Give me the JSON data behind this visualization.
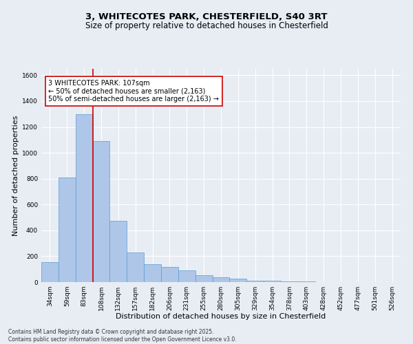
{
  "title_line1": "3, WHITECOTES PARK, CHESTERFIELD, S40 3RT",
  "title_line2": "Size of property relative to detached houses in Chesterfield",
  "xlabel": "Distribution of detached houses by size in Chesterfield",
  "ylabel": "Number of detached properties",
  "footer": "Contains HM Land Registry data © Crown copyright and database right 2025.\nContains public sector information licensed under the Open Government Licence v3.0.",
  "categories": [
    "34sqm",
    "59sqm",
    "83sqm",
    "108sqm",
    "132sqm",
    "157sqm",
    "182sqm",
    "206sqm",
    "231sqm",
    "255sqm",
    "280sqm",
    "305sqm",
    "329sqm",
    "354sqm",
    "378sqm",
    "403sqm",
    "428sqm",
    "452sqm",
    "477sqm",
    "501sqm",
    "526sqm"
  ],
  "values": [
    155,
    810,
    1300,
    1090,
    475,
    230,
    140,
    115,
    90,
    55,
    35,
    25,
    10,
    8,
    5,
    3,
    2,
    2,
    2,
    1,
    1
  ],
  "bar_color": "#aec6e8",
  "bar_edge_color": "#5b9bd5",
  "background_color": "#e8edf4",
  "vline_color": "#cc0000",
  "vline_x_index": 2.5,
  "annotation_text": "3 WHITECOTES PARK: 107sqm\n← 50% of detached houses are smaller (2,163)\n50% of semi-detached houses are larger (2,163) →",
  "annotation_box_color": "#cc0000",
  "ylim": [
    0,
    1650
  ],
  "yticks": [
    0,
    200,
    400,
    600,
    800,
    1000,
    1200,
    1400,
    1600
  ],
  "grid_color": "#ffffff",
  "title_fontsize": 9.5,
  "subtitle_fontsize": 8.5,
  "axis_label_fontsize": 8,
  "tick_fontsize": 6.5,
  "annotation_fontsize": 7,
  "footer_fontsize": 5.5
}
